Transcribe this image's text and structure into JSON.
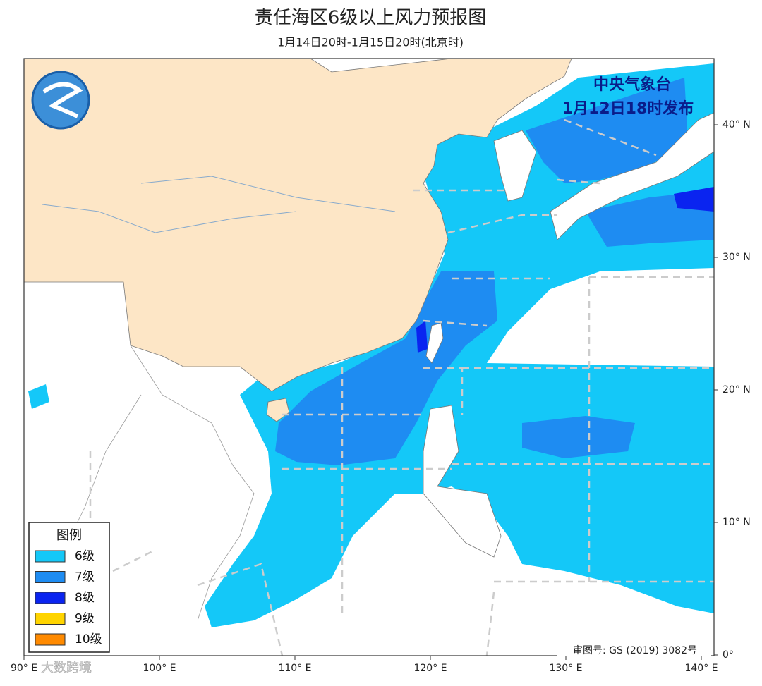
{
  "header": {
    "title": "责任海区6级以上风力预报图",
    "subtitle": "1月14日20时-1月15日20时(北京时)"
  },
  "issuer": {
    "name": "中央气象台",
    "time": "1月12日18时发布"
  },
  "legend": {
    "title": "图例",
    "items": [
      {
        "label": "6级",
        "color": "#14c8f8"
      },
      {
        "label": "7级",
        "color": "#1e8cf2"
      },
      {
        "label": "8级",
        "color": "#0a24f0"
      },
      {
        "label": "9级",
        "color": "#ffd400"
      },
      {
        "label": "10级",
        "color": "#ff8a00"
      }
    ]
  },
  "axes": {
    "lon_labels": [
      "90° E",
      "100° E",
      "110° E",
      "120° E",
      "130° E",
      "140° E"
    ],
    "lat_labels": [
      "40° N",
      "30° N",
      "20° N",
      "10° N",
      "0°"
    ]
  },
  "map_number": "审图号: GS (2019) 3082号",
  "watermark": "大数跨境"
}
